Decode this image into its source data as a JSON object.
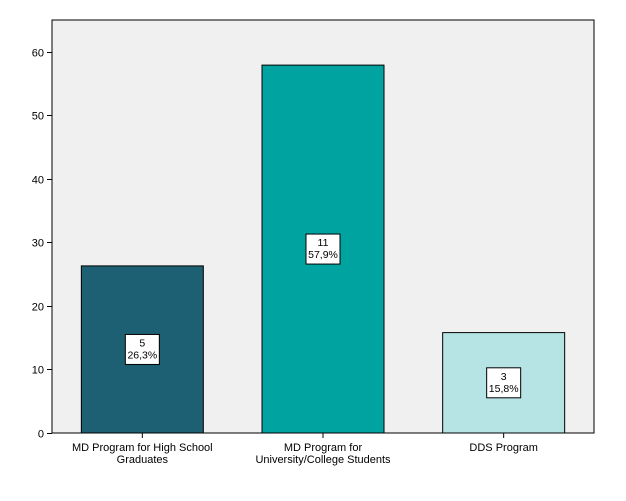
{
  "chart_data": {
    "type": "bar",
    "categories": [
      [
        "MD Program for High School",
        "Graduates"
      ],
      [
        "MD Program for",
        "University/College Students"
      ],
      [
        "DDS Program"
      ]
    ],
    "values": [
      26.3,
      57.9,
      15.8
    ],
    "data_labels": [
      [
        "5",
        "26,3%"
      ],
      [
        "11",
        "57,9%"
      ],
      [
        "3",
        "15,8%"
      ]
    ],
    "bar_colors": [
      "#1d5f73",
      "#00a3a0",
      "#b6e4e5"
    ],
    "ylim": [
      0,
      65
    ],
    "yticks": [
      0,
      10,
      20,
      30,
      40,
      50,
      60
    ],
    "ytick_labels": [
      "0",
      "10",
      "20",
      "30",
      "40",
      "50",
      "60"
    ],
    "plot_background": "#f0f0f0",
    "grid": false,
    "title": "",
    "xlabel": "",
    "ylabel": ""
  }
}
